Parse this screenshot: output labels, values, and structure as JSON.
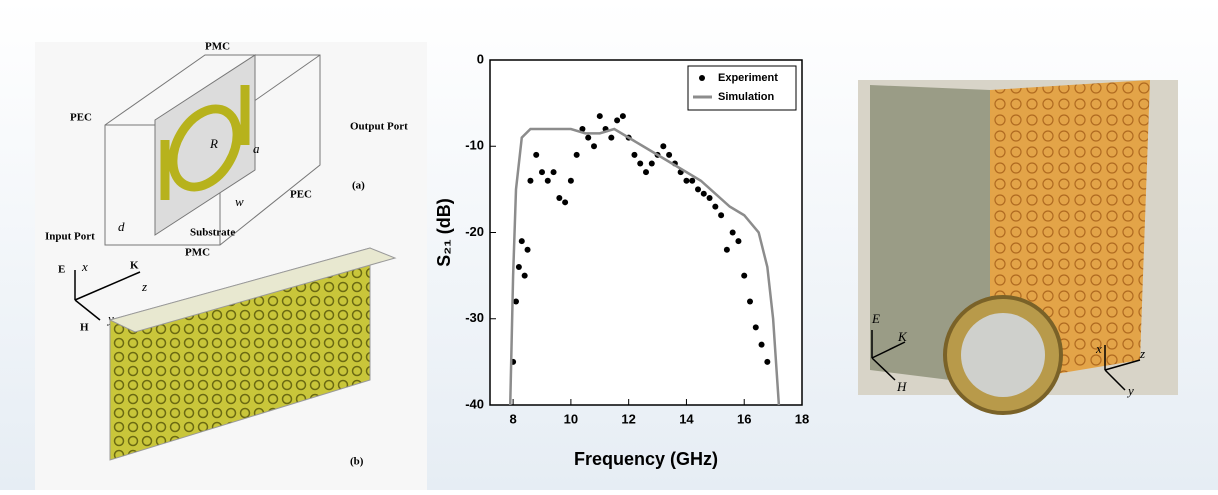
{
  "chart_data": {
    "type": "line",
    "x_label": "Frequency (GHz)",
    "y_label": "S₂₁ (dB)",
    "xlim": [
      7.2,
      18
    ],
    "xticks": [
      8,
      10,
      12,
      14,
      16,
      18
    ],
    "ylim": [
      -40,
      0
    ],
    "yticks": [
      -40,
      -30,
      -20,
      -10,
      0
    ],
    "legend": "upper right",
    "series": [
      {
        "name": "Experiment",
        "color": "#000000",
        "mode": "markers",
        "x": [
          8.0,
          8.1,
          8.2,
          8.3,
          8.4,
          8.5,
          8.6,
          8.8,
          9.0,
          9.2,
          9.4,
          9.6,
          9.8,
          10.0,
          10.2,
          10.4,
          10.6,
          10.8,
          11.0,
          11.2,
          11.4,
          11.6,
          11.8,
          12.0,
          12.2,
          12.4,
          12.6,
          12.8,
          13.0,
          13.2,
          13.4,
          13.6,
          13.8,
          14.0,
          14.2,
          14.4,
          14.6,
          14.8,
          15.0,
          15.2,
          15.4,
          15.6,
          15.8,
          16.0,
          16.2,
          16.4,
          16.6,
          16.8
        ],
        "values": [
          -35,
          -28,
          -24,
          -21,
          -25,
          -22,
          -14,
          -11,
          -13,
          -14,
          -13,
          -16,
          -16.5,
          -14,
          -11,
          -8,
          -9,
          -10,
          -6.5,
          -8,
          -9,
          -7,
          -6.5,
          -9,
          -11,
          -12,
          -13,
          -12,
          -11,
          -10,
          -11,
          -12,
          -13,
          -14,
          -14,
          -15,
          -15.5,
          -16,
          -17,
          -18,
          -22,
          -20,
          -21,
          -25,
          -28,
          -31,
          -33,
          -35
        ]
      },
      {
        "name": "Simulation",
        "color": "#8c8c8c",
        "mode": "line",
        "x": [
          7.9,
          8.0,
          8.1,
          8.3,
          8.6,
          9.0,
          9.5,
          10.0,
          10.5,
          11.0,
          11.5,
          12.0,
          12.5,
          13.0,
          13.5,
          14.0,
          14.5,
          15.0,
          15.5,
          16.0,
          16.5,
          16.8,
          17.0,
          17.2
        ],
        "values": [
          -40,
          -25,
          -15,
          -9,
          -8,
          -8,
          -8,
          -8,
          -8.5,
          -8.5,
          -8,
          -9,
          -10,
          -11,
          -12,
          -13,
          -14,
          -15.5,
          -17,
          -18,
          -20,
          -24,
          -30,
          -40
        ]
      }
    ]
  },
  "diagram": {
    "labels": [
      "PMC",
      "PEC",
      "Output Port",
      "(a)",
      "PEC",
      "Input Port",
      "d",
      "Substrate",
      "PMC",
      "w",
      "R",
      "a",
      "E",
      "x",
      "K",
      "z",
      "H",
      "y",
      "(b)"
    ]
  },
  "photo": {
    "labels": [
      "E",
      "K",
      "H",
      "x",
      "z",
      "y"
    ]
  }
}
